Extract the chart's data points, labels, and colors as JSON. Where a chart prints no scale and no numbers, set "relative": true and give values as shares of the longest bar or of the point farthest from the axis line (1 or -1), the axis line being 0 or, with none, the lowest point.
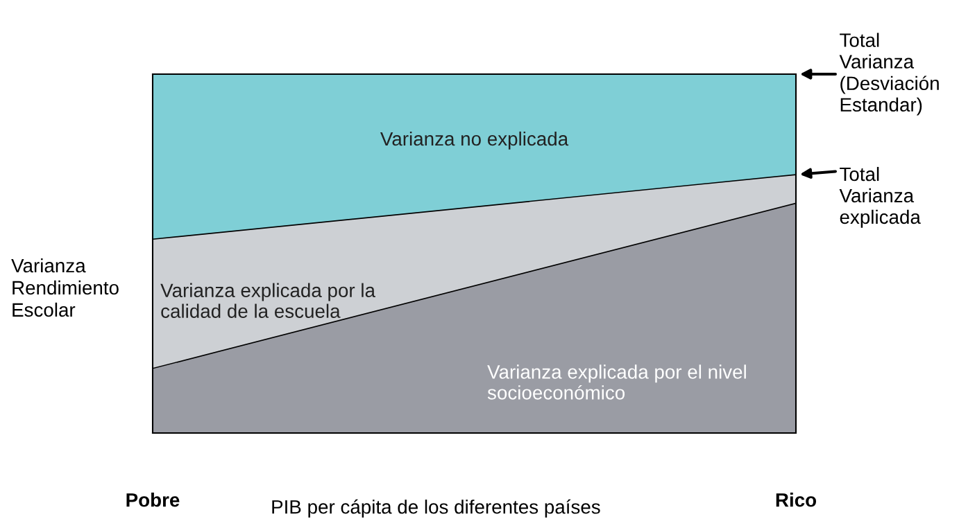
{
  "chart_data": {
    "type": "area",
    "stacked": true,
    "relative": true,
    "legend": false,
    "categories": [
      "Pobre",
      "Rico"
    ],
    "xlabel": "PIB per cápita de los diferentes países",
    "ylabel": "Varianza\nRendimiento\nEscolar",
    "series": [
      {
        "name": "Varianza explicada por el nivel\nsocioeconómico",
        "color": "#9a9ca4",
        "values": [
          0.18,
          0.64
        ]
      },
      {
        "name": "Varianza explicada por la\ncalidad de la escuela",
        "color": "#cdd0d4",
        "values": [
          0.36,
          0.08
        ]
      },
      {
        "name": "Varianza no explicada",
        "color": "#7fcfd6",
        "values": [
          0.46,
          0.28
        ]
      }
    ],
    "annotations": [
      "Total\nVarianza\n(Desviación\nEstandar)",
      "Total\nVarianza\nexplicada"
    ]
  }
}
